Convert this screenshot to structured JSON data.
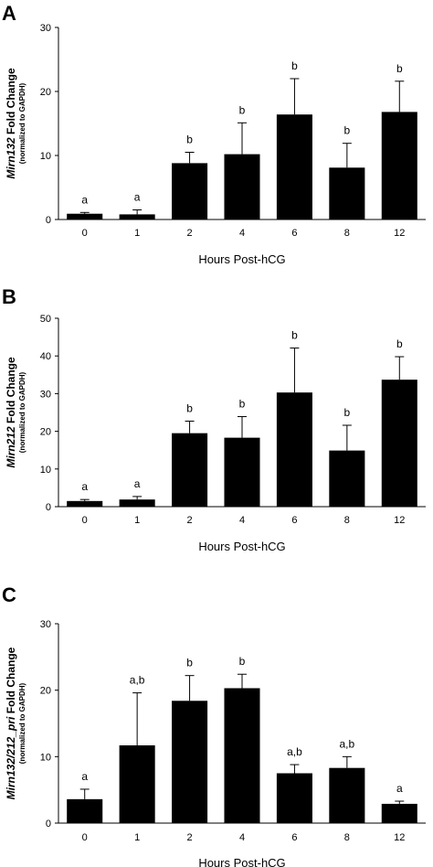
{
  "chart_data": [
    {
      "type": "bar",
      "panel_label": "A",
      "ylabel_gene": "Mirn132",
      "ylabel_rest": " Fold Change",
      "ylabel_sub": "(normalized to GAPDH)",
      "xlabel": "Hours Post-hCG",
      "categories": [
        "0",
        "1",
        "2",
        "4",
        "6",
        "8",
        "12"
      ],
      "values": [
        0.9,
        0.8,
        8.8,
        10.2,
        16.4,
        8.1,
        16.8
      ],
      "errors": [
        0.2,
        0.7,
        1.7,
        4.9,
        5.6,
        3.8,
        4.8
      ],
      "significance": [
        "a",
        "a",
        "b",
        "b",
        "b",
        "b",
        "b"
      ],
      "ylim": [
        0,
        30
      ],
      "yticks": [
        0,
        10,
        20,
        30
      ],
      "bar_color": "#000000"
    },
    {
      "type": "bar",
      "panel_label": "B",
      "ylabel_gene": "Mirn212",
      "ylabel_rest": " Fold Change",
      "ylabel_sub": "(normalized to GAPDH)",
      "xlabel": "Hours Post-hCG",
      "categories": [
        "0",
        "1",
        "2",
        "4",
        "6",
        "8",
        "12"
      ],
      "values": [
        1.5,
        1.9,
        19.5,
        18.3,
        30.3,
        14.9,
        33.7
      ],
      "errors": [
        0.4,
        0.8,
        3.2,
        5.6,
        11.8,
        6.7,
        6.1
      ],
      "significance": [
        "a",
        "a",
        "b",
        "b",
        "b",
        "b",
        "b"
      ],
      "ylim": [
        0,
        50
      ],
      "yticks": [
        0,
        10,
        20,
        30,
        40,
        50
      ],
      "bar_color": "#000000"
    },
    {
      "type": "bar",
      "panel_label": "C",
      "ylabel_gene": "Mirn132/212_pri",
      "ylabel_rest": " Fold Change",
      "ylabel_sub": "(normalized to GAPDH)",
      "xlabel": "Hours Post-hCG",
      "categories": [
        "0",
        "1",
        "2",
        "4",
        "6",
        "8",
        "12"
      ],
      "values": [
        3.6,
        11.7,
        18.4,
        20.3,
        7.5,
        8.3,
        2.9
      ],
      "errors": [
        1.5,
        7.9,
        3.8,
        2.1,
        1.3,
        1.7,
        0.4
      ],
      "significance": [
        "a",
        "a,b",
        "b",
        "b",
        "a,b",
        "a,b",
        "a"
      ],
      "ylim": [
        0,
        30
      ],
      "yticks": [
        0,
        10,
        20,
        30
      ],
      "bar_color": "#000000"
    }
  ]
}
